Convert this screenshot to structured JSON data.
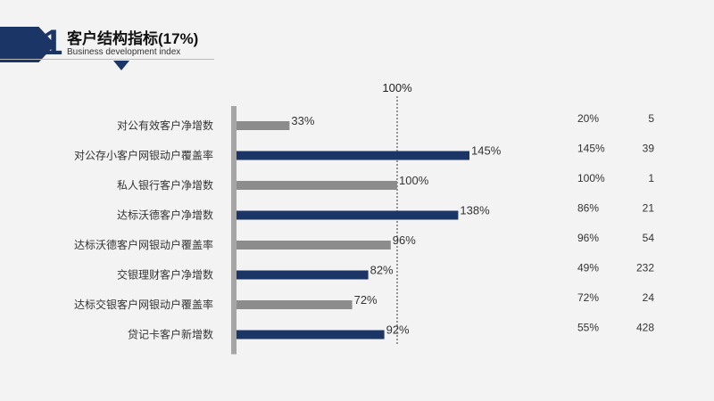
{
  "header": {
    "number": "1",
    "title": "客户结构指标(17%)",
    "subtitle": "Business development index"
  },
  "chart_data": {
    "type": "bar",
    "orientation": "horizontal",
    "reference_line": {
      "value": 100,
      "label": "100%"
    },
    "categories": [
      "对公有效客户净增数",
      "对公存小客户网银动户覆盖率",
      "私人银行客户净增数",
      "达标沃德客户净增数",
      "达标沃德客户网银动户覆盖率",
      "交银理财客户净增数",
      "达标交银客户网银动户覆盖率",
      "贷记卡客户新增数"
    ],
    "values": [
      33,
      145,
      100,
      138,
      96,
      82,
      72,
      92
    ],
    "value_labels": [
      "33%",
      "145%",
      "100%",
      "138%",
      "96%",
      "82%",
      "72%",
      "92%"
    ],
    "bar_colors": [
      "#8c8c8c",
      "#1c3567",
      "#8c8c8c",
      "#1c3567",
      "#8c8c8c",
      "#1c3567",
      "#8c8c8c",
      "#1c3567"
    ],
    "side_percent": [
      "20%",
      "145%",
      "100%",
      "86%",
      "96%",
      "49%",
      "72%",
      "55%"
    ],
    "side_count": [
      "5",
      "39",
      "1",
      "21",
      "54",
      "232",
      "24",
      "428"
    ]
  }
}
